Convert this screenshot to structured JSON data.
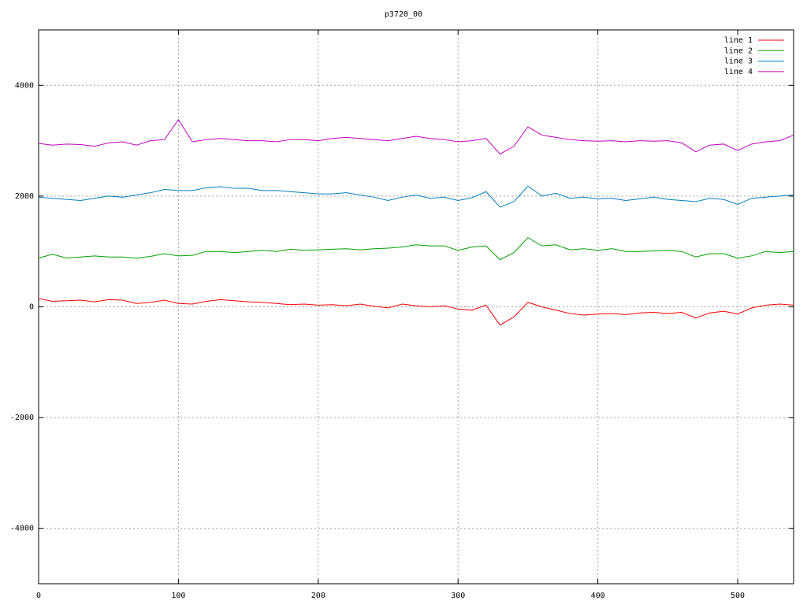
{
  "chart_data": {
    "type": "line",
    "title": "p3720_00",
    "x": [
      0,
      10,
      20,
      30,
      40,
      50,
      60,
      70,
      80,
      90,
      100,
      110,
      120,
      130,
      140,
      150,
      160,
      170,
      180,
      190,
      200,
      210,
      220,
      230,
      240,
      250,
      260,
      270,
      280,
      290,
      300,
      310,
      320,
      330,
      340,
      350,
      360,
      370,
      380,
      390,
      400,
      410,
      420,
      430,
      440,
      450,
      460,
      470,
      480,
      490,
      500,
      510,
      520,
      530,
      540
    ],
    "series": [
      {
        "name": "line 1",
        "color": "#ff0000",
        "values": [
          150,
          100,
          110,
          120,
          90,
          130,
          120,
          60,
          80,
          120,
          60,
          50,
          100,
          130,
          110,
          90,
          80,
          60,
          40,
          50,
          30,
          40,
          20,
          50,
          10,
          -20,
          50,
          20,
          0,
          20,
          -40,
          -60,
          30,
          -330,
          -180,
          80,
          0,
          -60,
          -120,
          -150,
          -130,
          -120,
          -140,
          -110,
          -100,
          -120,
          -100,
          -200,
          -110,
          -80,
          -130,
          -20,
          30,
          50,
          30
        ]
      },
      {
        "name": "line 2",
        "color": "#00a000",
        "values": [
          880,
          950,
          880,
          900,
          920,
          900,
          900,
          880,
          910,
          960,
          920,
          930,
          1000,
          1000,
          980,
          1000,
          1020,
          1000,
          1040,
          1020,
          1030,
          1040,
          1050,
          1030,
          1050,
          1060,
          1080,
          1120,
          1100,
          1100,
          1020,
          1080,
          1100,
          850,
          980,
          1250,
          1100,
          1120,
          1030,
          1050,
          1020,
          1050,
          1000,
          1000,
          1010,
          1020,
          1000,
          900,
          960,
          960,
          880,
          920,
          1000,
          980,
          1000
        ]
      },
      {
        "name": "line 3",
        "color": "#0080c0",
        "values": [
          1980,
          1960,
          1940,
          1920,
          1960,
          2000,
          1980,
          2020,
          2060,
          2120,
          2100,
          2100,
          2150,
          2170,
          2140,
          2140,
          2100,
          2100,
          2080,
          2060,
          2040,
          2040,
          2060,
          2020,
          1980,
          1920,
          1980,
          2020,
          1960,
          1980,
          1920,
          1970,
          2080,
          1800,
          1900,
          2180,
          2000,
          2050,
          1960,
          1980,
          1950,
          1960,
          1920,
          1950,
          1980,
          1940,
          1920,
          1900,
          1960,
          1940,
          1850,
          1960,
          1980,
          2000,
          2020
        ]
      },
      {
        "name": "line 4",
        "color": "#c000c0",
        "values": [
          2950,
          2920,
          2940,
          2930,
          2900,
          2960,
          2980,
          2920,
          3000,
          3020,
          3380,
          2980,
          3020,
          3040,
          3020,
          3000,
          3000,
          2980,
          3020,
          3020,
          3000,
          3040,
          3060,
          3040,
          3020,
          3000,
          3040,
          3080,
          3040,
          3020,
          2980,
          3000,
          3040,
          2760,
          2900,
          3250,
          3100,
          3060,
          3020,
          3000,
          2990,
          3000,
          2980,
          3000,
          2990,
          3000,
          2960,
          2800,
          2920,
          2940,
          2820,
          2940,
          2980,
          3000,
          3100
        ]
      }
    ],
    "xlim": [
      0,
      540
    ],
    "ylim": [
      -5000,
      5000
    ],
    "xticks": [
      0,
      100,
      200,
      300,
      400,
      500
    ],
    "yticks": [
      -4000,
      -2000,
      0,
      2000,
      4000
    ],
    "grid": true,
    "legend": "top-right"
  }
}
